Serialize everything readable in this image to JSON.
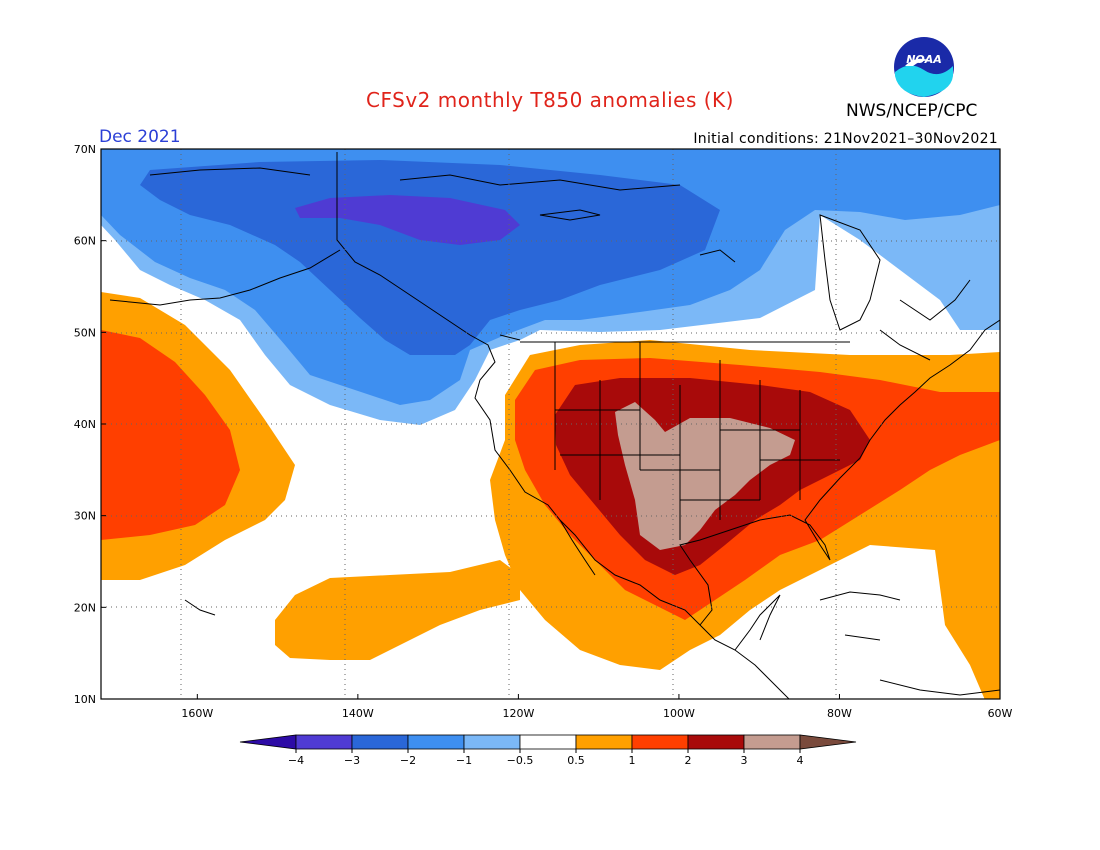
{
  "header": {
    "title": "CFSv2 monthly T850 anomalies (K)",
    "month": "Dec 2021",
    "initial_conditions": "Initial conditions: 21Nov2021–30Nov2021",
    "org": "NWS/NCEP/CPC",
    "logo_text": "NOAA"
  },
  "map": {
    "lon_range": [
      -172,
      -60
    ],
    "lat_range": [
      10,
      70
    ],
    "lat_labels": [
      "10N",
      "20N",
      "30N",
      "40N",
      "50N",
      "60N",
      "70N"
    ],
    "lat_values": [
      10,
      20,
      30,
      40,
      50,
      60,
      70
    ],
    "lon_labels": [
      "160W",
      "140W",
      "120W",
      "100W",
      "80W",
      "60W"
    ],
    "lon_values": [
      -160,
      -140,
      -120,
      -100,
      -80,
      -60
    ]
  },
  "colorbar": {
    "colors": [
      "#2d0ba6",
      "#4f3bd3",
      "#2a67d8",
      "#3e8ff0",
      "#7bb8f7",
      "#ffffff",
      "#ffa000",
      "#ff3f00",
      "#a80a0a",
      "#c49c90",
      "#7a4a3c"
    ],
    "labels": [
      "−4",
      "−3",
      "−2",
      "−1",
      "−0.5",
      "0.5",
      "1",
      "2",
      "3",
      "4"
    ]
  },
  "palette": {
    "blue_m1": "#3e8ff0",
    "blue_m2": "#2a67d8",
    "blue_m3": "#4f3bd3",
    "orange_1": "#ffa000",
    "red_2": "#ff3f00",
    "darkred_3": "#a80a0a",
    "tan_4": "#c49c90"
  }
}
